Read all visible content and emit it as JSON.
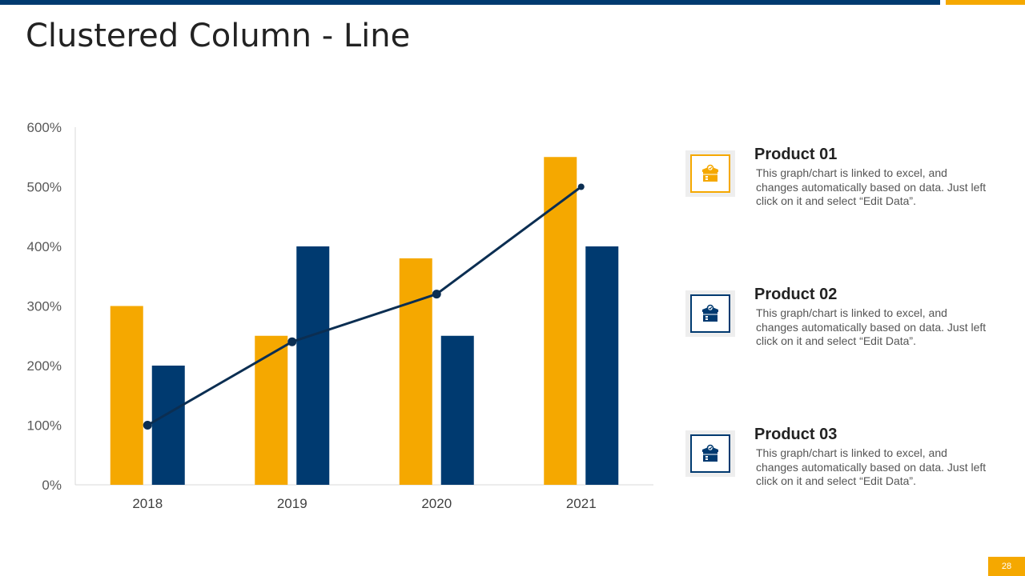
{
  "title": "Clustered Column - Line",
  "page_number": "28",
  "colors": {
    "yellow": "#f5a800",
    "blue": "#003a70",
    "line": "#0b2e52"
  },
  "chart_data": {
    "type": "bar",
    "categories": [
      "2018",
      "2019",
      "2020",
      "2021"
    ],
    "series": [
      {
        "name": "Product 01",
        "kind": "bar",
        "color": "#f5a800",
        "values": [
          300,
          250,
          380,
          550
        ]
      },
      {
        "name": "Product 02",
        "kind": "bar",
        "color": "#003a70",
        "values": [
          200,
          400,
          250,
          400
        ]
      },
      {
        "name": "Product 03",
        "kind": "line",
        "color": "#0b2e52",
        "values": [
          100,
          240,
          320,
          500
        ]
      }
    ],
    "ylim": [
      0,
      600
    ],
    "yticks": [
      0,
      100,
      200,
      300,
      400,
      500,
      600
    ],
    "ytick_labels": [
      "0%",
      "100%",
      "200%",
      "300%",
      "400%",
      "500%",
      "600%"
    ],
    "xlabel": "",
    "ylabel": ""
  },
  "legend": [
    {
      "name": "Product 01",
      "desc": "This graph/chart is linked to excel, and changes automatically based on data. Just left click on it and select “Edit Data”.",
      "icon": "box-icon",
      "color": "#f5a800"
    },
    {
      "name": "Product 02",
      "desc": "This graph/chart is linked to excel, and changes automatically based on data. Just left click on it and select “Edit Data”.",
      "icon": "box-icon",
      "color": "#003a70"
    },
    {
      "name": "Product 03",
      "desc": "This graph/chart is linked to excel, and changes automatically based on data. Just left click on it and select “Edit Data”.",
      "icon": "box-icon",
      "color": "#003a70"
    }
  ]
}
